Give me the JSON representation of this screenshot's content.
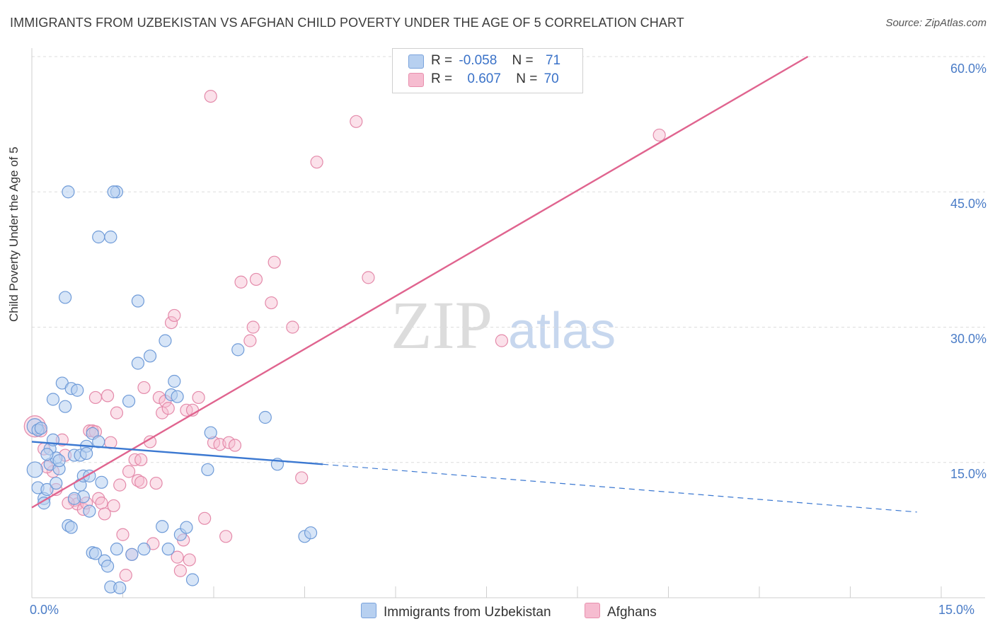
{
  "title": "IMMIGRANTS FROM UZBEKISTAN VS AFGHAN CHILD POVERTY UNDER THE AGE OF 5 CORRELATION CHART",
  "source": "Source: ZipAtlas.com",
  "watermark": "ZIPatlas",
  "legend": {
    "rows": [
      {
        "r_label": "R =",
        "r_value": "-0.058",
        "n_label": "N =",
        "n_value": "71"
      },
      {
        "r_label": "R =",
        "r_value": "0.607",
        "n_label": "N =",
        "n_value": "70"
      }
    ]
  },
  "bottom_legend": {
    "series1": "Immigrants from Uzbekistan",
    "series2": "Afghans"
  },
  "colors": {
    "blue": "#3b78d1",
    "pink": "#e0648f",
    "blue_fill": "#b7d0f0",
    "pink_fill": "#f6bcd0",
    "accent_text": "#4a7cc7"
  },
  "chart_data": {
    "type": "scatter",
    "title": "IMMIGRANTS FROM UZBEKISTAN VS AFGHAN CHILD POVERTY UNDER THE AGE OF 5 CORRELATION CHART",
    "xlabel": "",
    "ylabel": "Child Poverty Under the Age of 5",
    "xlim": [
      0,
      15
    ],
    "ylim": [
      0,
      60
    ],
    "x_tick_labels": [
      "0.0%",
      "15.0%"
    ],
    "y_ticks": [
      15,
      30,
      45,
      60
    ],
    "y_tick_labels": [
      "15.0%",
      "30.0%",
      "45.0%",
      "60.0%"
    ],
    "grid": true,
    "series": [
      {
        "name": "Immigrants from Uzbekistan",
        "color": "#3b78d1",
        "r": -0.058,
        "n": 71,
        "trend": {
          "x": [
            0,
            4.8
          ],
          "y": [
            17.3,
            14.8
          ],
          "dashed_to": [
            14.6,
            9.5
          ]
        },
        "points": [
          [
            0.05,
            19.0
          ],
          [
            0.1,
            18.6
          ],
          [
            0.05,
            14.2
          ],
          [
            0.1,
            12.2
          ],
          [
            0.2,
            11.0
          ],
          [
            0.2,
            10.5
          ],
          [
            0.25,
            12.0
          ],
          [
            0.3,
            16.5
          ],
          [
            0.3,
            14.8
          ],
          [
            0.35,
            17.5
          ],
          [
            0.4,
            15.5
          ],
          [
            0.45,
            14.3
          ],
          [
            0.4,
            12.7
          ],
          [
            0.35,
            22.0
          ],
          [
            0.5,
            23.8
          ],
          [
            0.55,
            21.2
          ],
          [
            0.6,
            8.0
          ],
          [
            0.65,
            7.8
          ],
          [
            0.65,
            23.2
          ],
          [
            0.75,
            23.0
          ],
          [
            0.7,
            15.8
          ],
          [
            0.8,
            15.8
          ],
          [
            0.8,
            12.5
          ],
          [
            0.85,
            13.5
          ],
          [
            0.85,
            11.2
          ],
          [
            0.9,
            16.8
          ],
          [
            0.9,
            16.0
          ],
          [
            0.95,
            13.5
          ],
          [
            0.95,
            9.6
          ],
          [
            1.0,
            18.2
          ],
          [
            1.0,
            5.0
          ],
          [
            1.05,
            4.9
          ],
          [
            1.1,
            17.3
          ],
          [
            1.15,
            12.8
          ],
          [
            1.2,
            4.1
          ],
          [
            1.25,
            3.5
          ],
          [
            1.3,
            1.2
          ],
          [
            1.4,
            5.4
          ],
          [
            1.4,
            45.0
          ],
          [
            1.1,
            40.0
          ],
          [
            1.3,
            40.0
          ],
          [
            0.6,
            45.0
          ],
          [
            1.35,
            45.0
          ],
          [
            0.55,
            33.3
          ],
          [
            1.6,
            21.8
          ],
          [
            1.65,
            4.8
          ],
          [
            1.75,
            26.0
          ],
          [
            1.75,
            32.9
          ],
          [
            1.85,
            5.4
          ],
          [
            1.95,
            26.8
          ],
          [
            2.15,
            7.9
          ],
          [
            2.2,
            28.5
          ],
          [
            2.25,
            5.4
          ],
          [
            2.3,
            22.5
          ],
          [
            2.35,
            24.0
          ],
          [
            2.4,
            22.3
          ],
          [
            2.45,
            7.0
          ],
          [
            2.55,
            7.8
          ],
          [
            2.65,
            2.0
          ],
          [
            2.9,
            14.2
          ],
          [
            2.95,
            18.3
          ],
          [
            3.4,
            27.5
          ],
          [
            3.85,
            20.0
          ],
          [
            4.05,
            14.8
          ],
          [
            4.5,
            6.8
          ],
          [
            4.6,
            7.2
          ],
          [
            0.15,
            18.8
          ],
          [
            0.45,
            15.2
          ],
          [
            1.45,
            1.1
          ],
          [
            0.25,
            15.9
          ],
          [
            0.7,
            11.0
          ]
        ]
      },
      {
        "name": "Afghans",
        "color": "#e0648f",
        "r": 0.607,
        "n": 70,
        "trend": {
          "x": [
            0,
            12.8
          ],
          "y": [
            10.0,
            60.0
          ]
        },
        "points": [
          [
            0.05,
            19.0
          ],
          [
            0.15,
            18.5
          ],
          [
            0.2,
            16.5
          ],
          [
            0.35,
            14.0
          ],
          [
            0.4,
            12.0
          ],
          [
            0.5,
            17.5
          ],
          [
            0.55,
            15.8
          ],
          [
            0.7,
            10.8
          ],
          [
            0.75,
            10.4
          ],
          [
            0.85,
            9.8
          ],
          [
            0.95,
            18.5
          ],
          [
            1.0,
            18.5
          ],
          [
            1.05,
            22.2
          ],
          [
            1.05,
            18.4
          ],
          [
            1.1,
            11.0
          ],
          [
            1.15,
            10.5
          ],
          [
            1.2,
            9.3
          ],
          [
            1.25,
            22.4
          ],
          [
            1.3,
            17.2
          ],
          [
            1.35,
            10.2
          ],
          [
            1.4,
            20.5
          ],
          [
            1.45,
            12.5
          ],
          [
            1.5,
            7.0
          ],
          [
            1.55,
            2.5
          ],
          [
            1.6,
            14.0
          ],
          [
            1.65,
            4.8
          ],
          [
            1.7,
            15.3
          ],
          [
            1.75,
            13.0
          ],
          [
            1.8,
            12.8
          ],
          [
            1.8,
            15.3
          ],
          [
            1.85,
            23.3
          ],
          [
            1.95,
            17.3
          ],
          [
            2.0,
            6.0
          ],
          [
            2.05,
            12.7
          ],
          [
            2.1,
            22.2
          ],
          [
            2.15,
            20.5
          ],
          [
            2.2,
            21.8
          ],
          [
            2.25,
            21.0
          ],
          [
            2.3,
            30.5
          ],
          [
            2.35,
            31.3
          ],
          [
            2.4,
            4.5
          ],
          [
            2.45,
            3.0
          ],
          [
            2.5,
            6.4
          ],
          [
            2.55,
            20.8
          ],
          [
            2.6,
            4.2
          ],
          [
            2.75,
            22.2
          ],
          [
            2.85,
            8.8
          ],
          [
            2.95,
            55.6
          ],
          [
            3.0,
            17.2
          ],
          [
            3.1,
            17.0
          ],
          [
            3.2,
            6.8
          ],
          [
            3.25,
            17.2
          ],
          [
            3.35,
            16.9
          ],
          [
            3.45,
            35.0
          ],
          [
            3.6,
            28.5
          ],
          [
            3.65,
            30.0
          ],
          [
            3.7,
            35.3
          ],
          [
            3.95,
            32.7
          ],
          [
            4.0,
            37.2
          ],
          [
            4.3,
            30.0
          ],
          [
            4.45,
            13.3
          ],
          [
            4.7,
            48.3
          ],
          [
            5.35,
            52.8
          ],
          [
            5.55,
            35.5
          ],
          [
            7.75,
            28.5
          ],
          [
            10.35,
            51.3
          ],
          [
            0.6,
            10.5
          ],
          [
            0.9,
            10.5
          ],
          [
            2.65,
            20.8
          ],
          [
            0.25,
            14.5
          ]
        ]
      }
    ]
  }
}
